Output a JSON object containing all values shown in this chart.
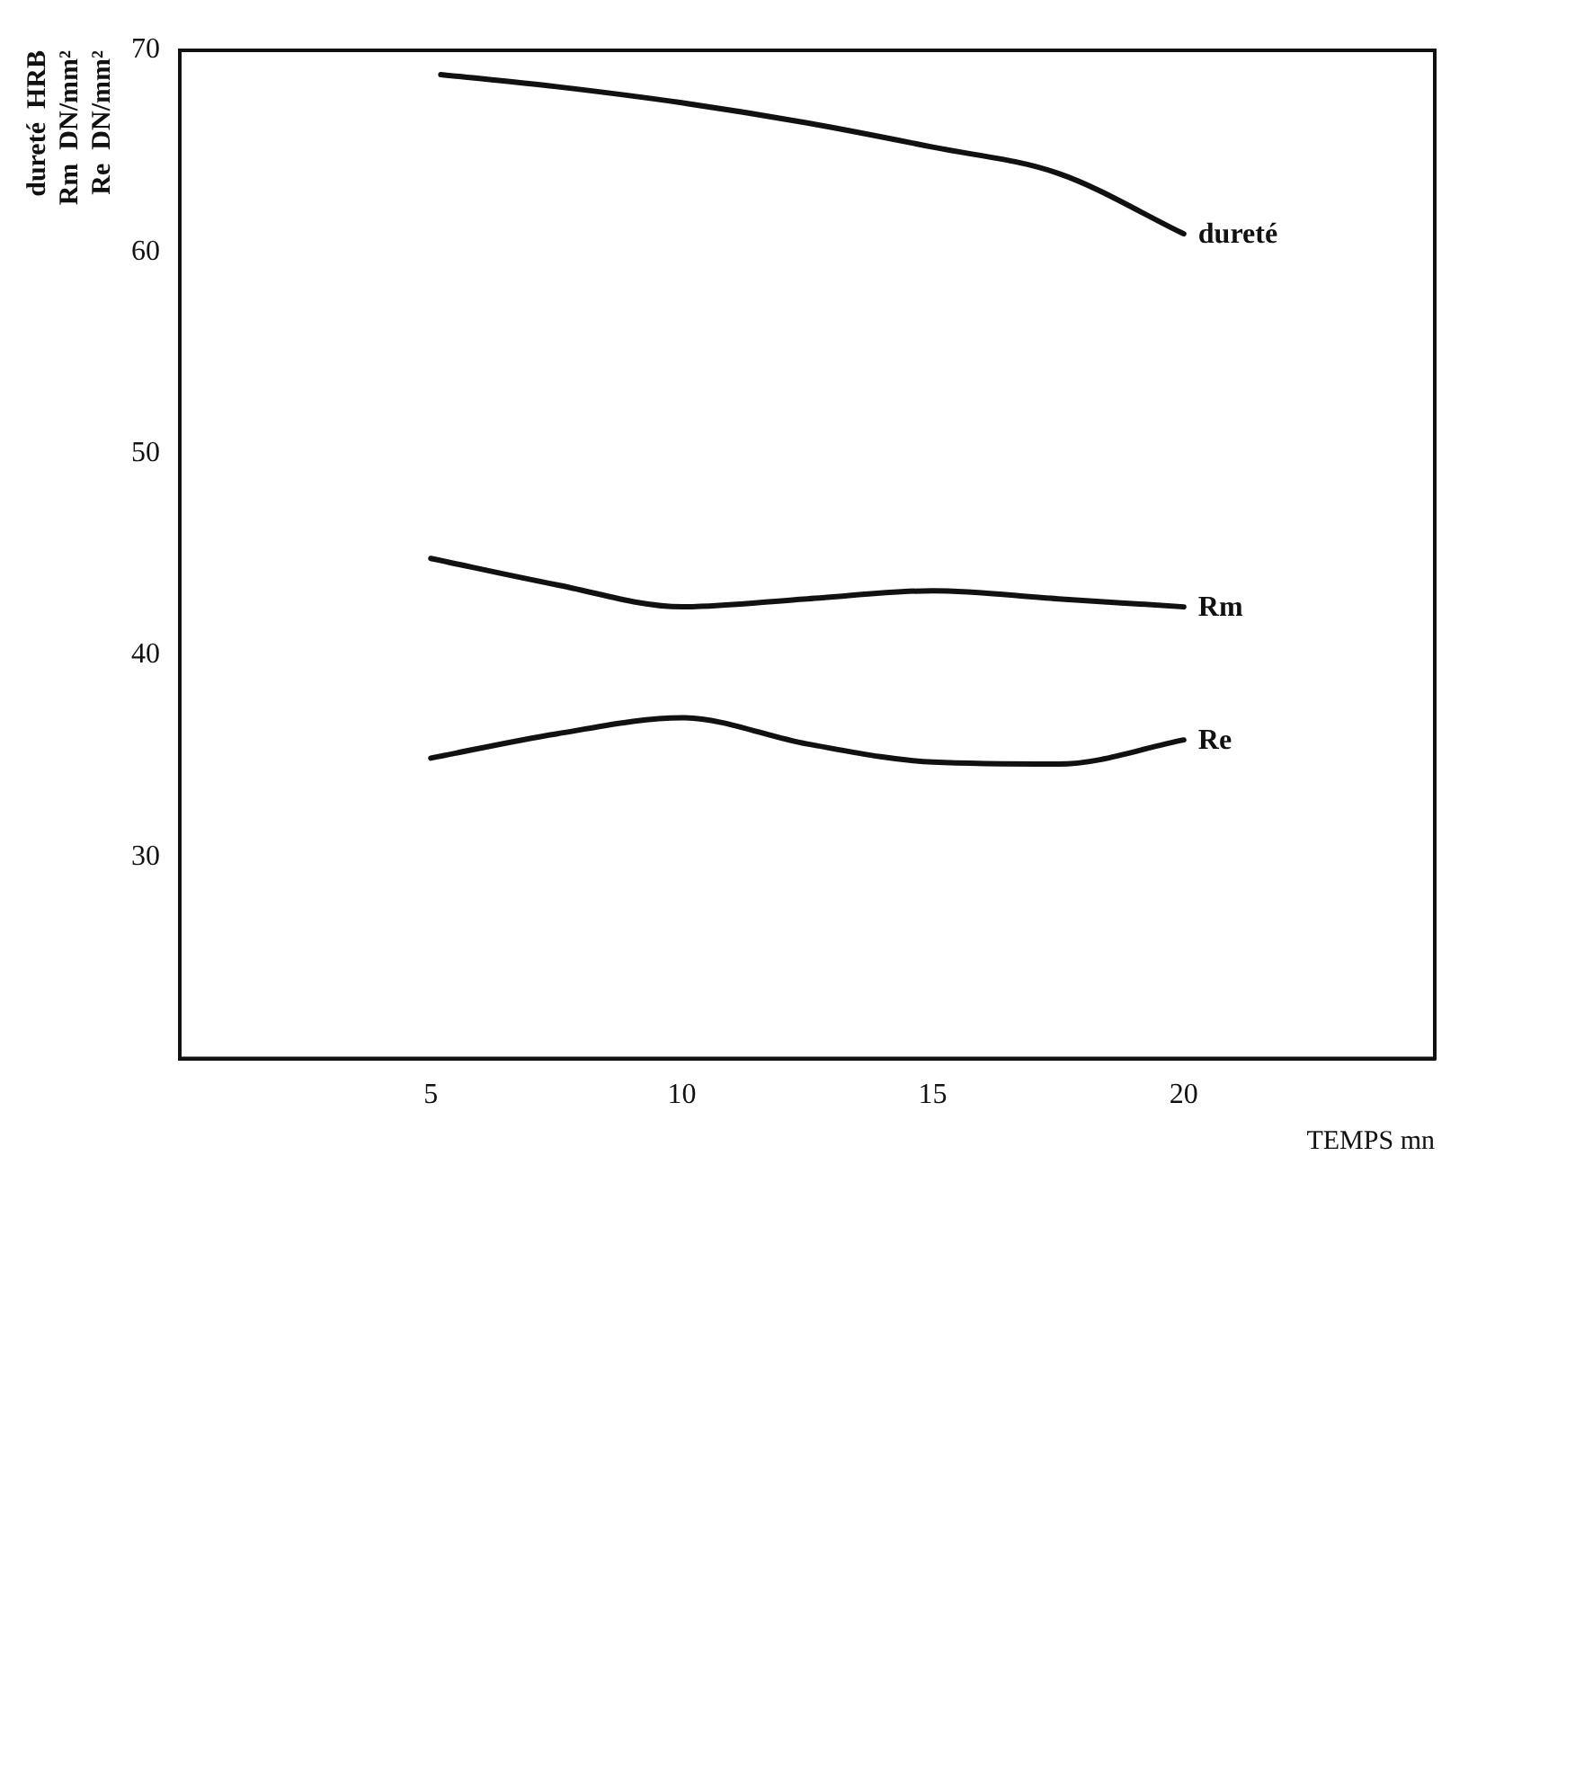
{
  "chart_data": {
    "type": "line",
    "xlabel": "TEMPS mn",
    "ylabel": "dureté  HRB\nRm  DN/mm²\nRe  DN/mm²",
    "xlim": [
      0,
      25
    ],
    "xticks": [
      5,
      10,
      15,
      20
    ],
    "ylim": [
      20,
      70
    ],
    "yticks": [
      30,
      40,
      50,
      60,
      70
    ],
    "grid": false,
    "legend": false,
    "marker": "none",
    "line_style": "solid",
    "series": [
      {
        "name": "dureté",
        "color": "#111111",
        "x": [
          5.2,
          7.5,
          10,
          12.5,
          15,
          17.5,
          20
        ],
        "values": [
          68.8,
          68.2,
          67.4,
          66.4,
          65.2,
          63.9,
          60.9
        ]
      },
      {
        "name": "Rm",
        "color": "#111111",
        "x": [
          5,
          7.5,
          10,
          12.5,
          15,
          17.5,
          20
        ],
        "values": [
          44.8,
          43.5,
          42.4,
          42.8,
          43.2,
          42.8,
          42.4
        ]
      },
      {
        "name": "Re",
        "color": "#111111",
        "x": [
          5,
          7.5,
          10,
          12.5,
          15,
          17.5,
          20
        ],
        "values": [
          34.9,
          36.1,
          36.9,
          35.6,
          34.7,
          34.6,
          35.8
        ]
      }
    ]
  }
}
